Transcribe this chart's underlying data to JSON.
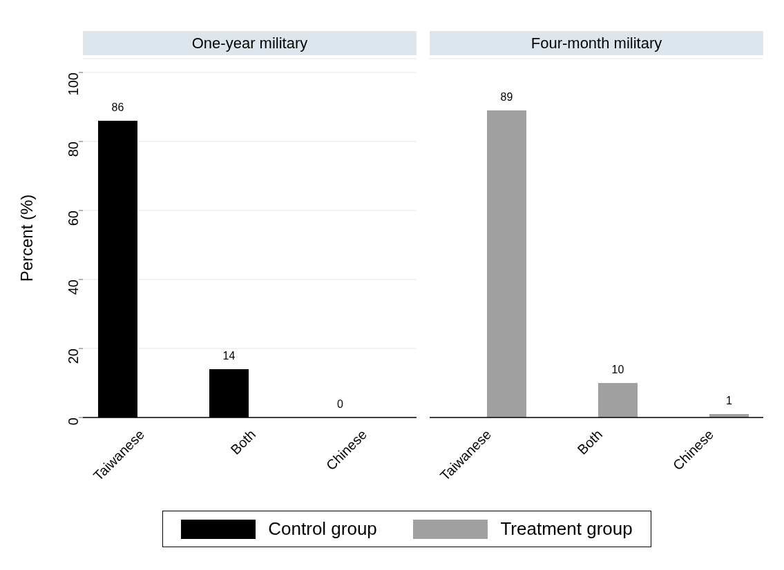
{
  "chart_data": [
    {
      "type": "bar",
      "title": "One-year military",
      "ylabel": "Percent (%)",
      "categories": [
        "Taiwanese",
        "Both",
        "Chinese"
      ],
      "series": [
        {
          "name": "Control group",
          "color": "#000000",
          "values": [
            86,
            14,
            0
          ]
        },
        {
          "color": "#a0a0a0",
          "values": [
            null,
            null,
            null
          ]
        }
      ],
      "ylim": [
        0,
        104
      ],
      "yticks": [
        0,
        20,
        40,
        60,
        80,
        100
      ],
      "grid": "y",
      "data_labels": true,
      "legend": "bottom"
    },
    {
      "type": "bar",
      "title": "Four-month military",
      "categories": [
        "Taiwanese",
        "Both",
        "Chinese"
      ],
      "series": [
        {
          "color": "#000000",
          "values": [
            null,
            null,
            null
          ]
        },
        {
          "name": "Treatment group",
          "color": "#a0a0a0",
          "values": [
            89,
            10,
            1
          ]
        }
      ],
      "ylim": [
        0,
        104
      ],
      "yticks": [
        0,
        20,
        40,
        60,
        80,
        100
      ],
      "grid": "y",
      "data_labels": true,
      "tick_labels": "x"
    }
  ]
}
